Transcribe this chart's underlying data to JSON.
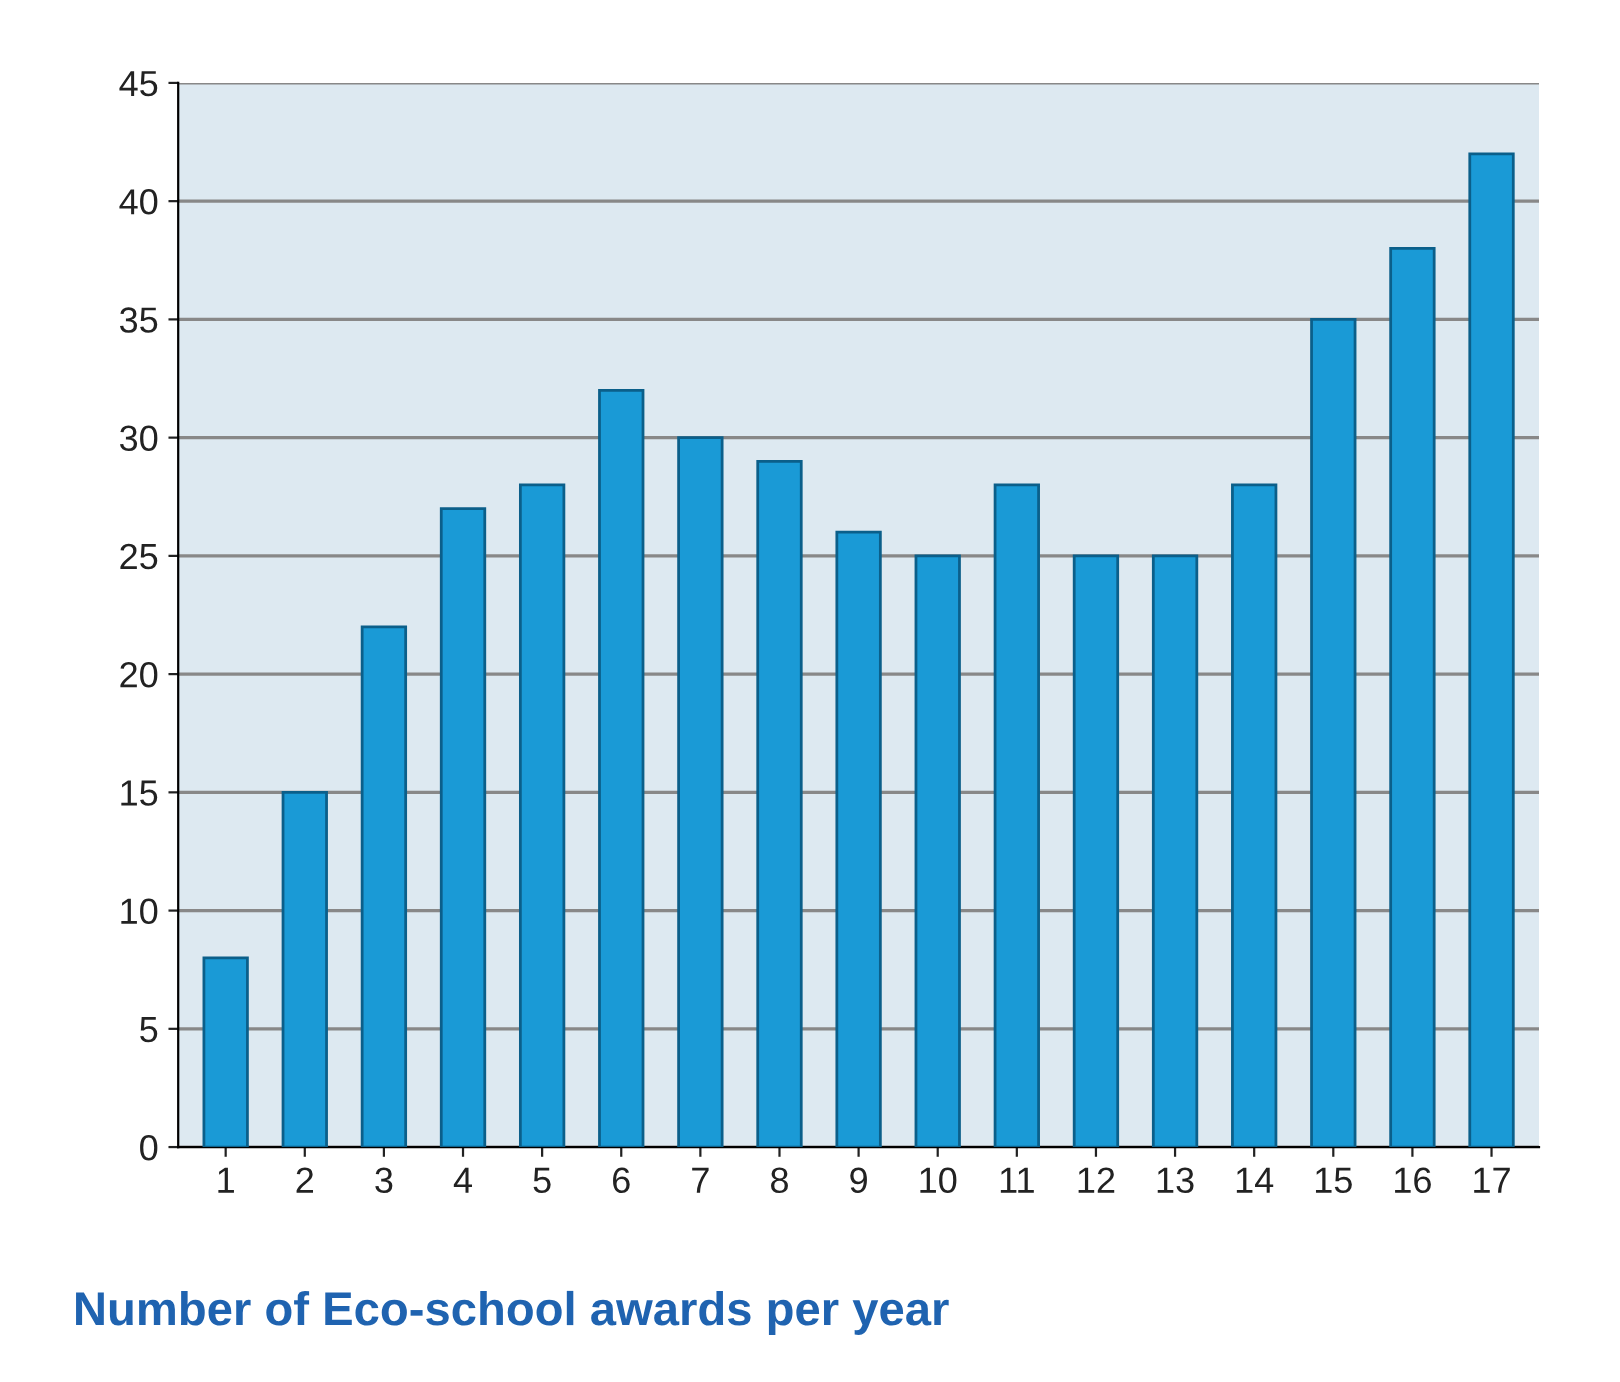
{
  "chart_data": {
    "type": "bar",
    "title": "Number of Eco-school awards per year",
    "categories": [
      "1",
      "2",
      "3",
      "4",
      "5",
      "6",
      "7",
      "8",
      "9",
      "10",
      "11",
      "12",
      "13",
      "14",
      "15",
      "16",
      "17"
    ],
    "values": [
      8,
      15,
      22,
      27,
      28,
      32,
      30,
      29,
      26,
      25,
      28,
      25,
      25,
      28,
      35,
      38,
      42
    ],
    "color": "#1a9ad6",
    "ylim": [
      0,
      45
    ],
    "yticks": [
      0,
      5,
      10,
      15,
      20,
      25,
      30,
      35,
      40,
      45
    ],
    "grid": "y"
  }
}
